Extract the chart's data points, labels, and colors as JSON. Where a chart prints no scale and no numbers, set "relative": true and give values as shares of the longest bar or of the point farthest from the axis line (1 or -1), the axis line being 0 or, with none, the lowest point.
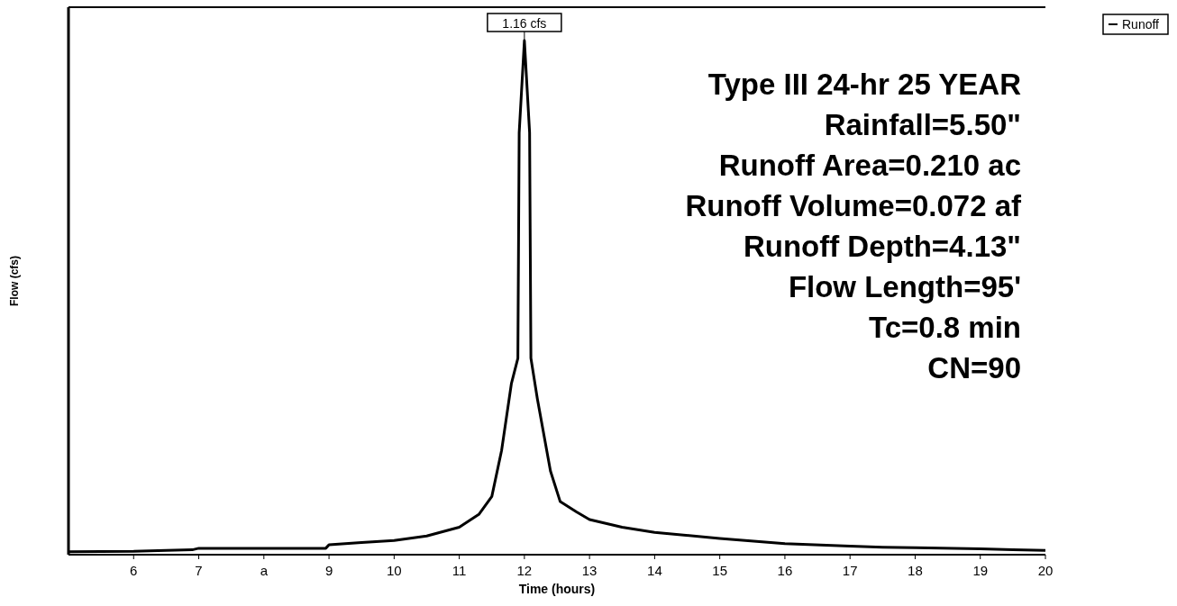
{
  "chart_data": {
    "type": "line",
    "xlabel": "Time  (hours)",
    "ylabel": "Flow  (cfs)",
    "relative": true,
    "xlim": [
      5,
      20
    ],
    "xticks": [
      6,
      7,
      {
        "value": 8,
        "label": "a"
      },
      9,
      10,
      11,
      12,
      13,
      14,
      15,
      16,
      17,
      18,
      19,
      20
    ],
    "x": [
      5,
      6,
      6.5,
      6.9,
      7,
      8,
      8.95,
      9,
      9.5,
      10,
      10.5,
      11,
      11.3,
      11.5,
      11.65,
      11.8,
      11.9,
      11.92,
      12,
      12.08,
      12.1,
      12.2,
      12.4,
      12.55,
      12.8,
      13,
      13.5,
      14,
      15,
      16,
      17,
      17.5,
      18,
      19,
      19.5,
      20
    ],
    "series": [
      {
        "name": "Runoff",
        "color": "#000000",
        "values": [
          0.002,
          0.003,
          0.005,
          0.006,
          0.009,
          0.009,
          0.009,
          0.016,
          0.02,
          0.024,
          0.033,
          0.05,
          0.075,
          0.11,
          0.2,
          0.33,
          0.38,
          0.82,
          1,
          0.82,
          0.38,
          0.3,
          0.16,
          0.1,
          0.08,
          0.065,
          0.05,
          0.04,
          0.028,
          0.018,
          0.013,
          0.011,
          0.01,
          0.008,
          0.006,
          0.005
        ]
      }
    ],
    "annotations": [
      {
        "text": "1.16 cfs",
        "x": 12,
        "y": 1
      },
      "Type III 24-hr 25 YEAR",
      "Rainfall=5.50\"",
      "Runoff Area=0.210 ac",
      "Runoff Volume=0.072 af",
      "Runoff Depth=4.13\"",
      "Flow Length=95'",
      "Tc=0.8 min",
      "CN=90"
    ],
    "legend": "top right",
    "grid": false,
    "line_style": "solid"
  }
}
